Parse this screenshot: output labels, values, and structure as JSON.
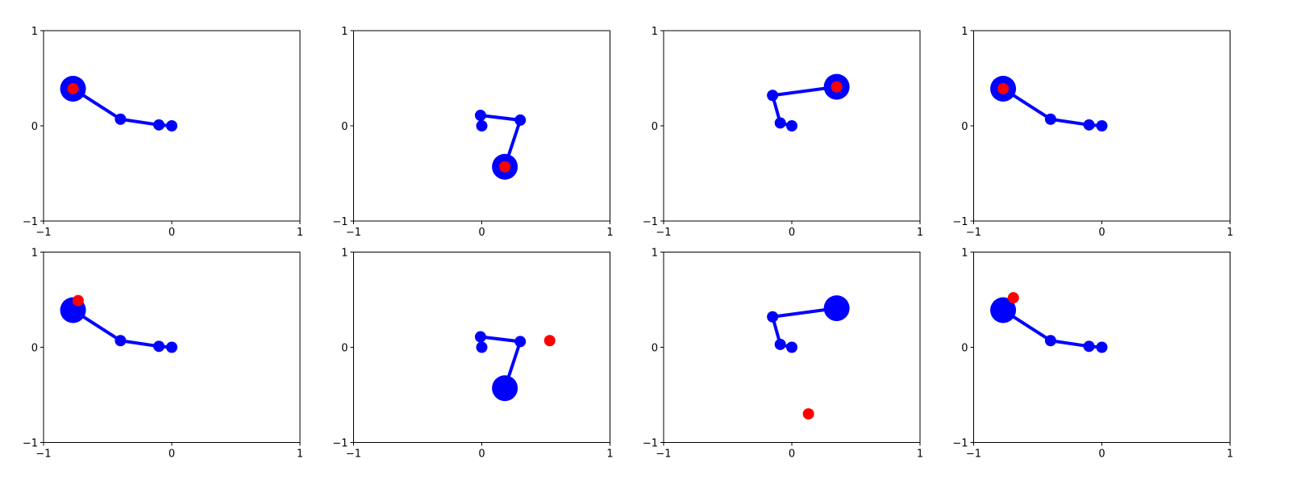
{
  "chart_data": [
    {
      "type": "line",
      "x": [
        0,
        -0.1,
        -0.4,
        -0.77
      ],
      "values": [
        0,
        0.01,
        0.07,
        0.39
      ],
      "color": "#0000ff",
      "target": {
        "x": -0.77,
        "y": 0.39,
        "color": "#ff0000"
      },
      "xlim": [
        -1,
        1
      ],
      "ylim": [
        -1,
        1
      ],
      "xticks": [
        {
          "value": -1,
          "label": "−1"
        },
        0,
        1
      ],
      "yticks": [
        {
          "value": -1,
          "label": "−1"
        },
        0,
        1
      ]
    },
    {
      "type": "line",
      "x": [
        0,
        -0.01,
        0.3,
        0.18
      ],
      "values": [
        0,
        0.11,
        0.06,
        -0.43
      ],
      "color": "#0000ff",
      "target": {
        "x": 0.18,
        "y": -0.43,
        "color": "#ff0000"
      },
      "xlim": [
        -1,
        1
      ],
      "ylim": [
        -1,
        1
      ],
      "xticks": [
        {
          "value": -1,
          "label": "−1"
        },
        0,
        1
      ],
      "yticks": [
        {
          "value": -1,
          "label": "−1"
        },
        0,
        1
      ]
    },
    {
      "type": "line",
      "x": [
        0,
        -0.09,
        -0.15,
        0.35
      ],
      "values": [
        0,
        0.03,
        0.32,
        0.41
      ],
      "color": "#0000ff",
      "target": {
        "x": 0.35,
        "y": 0.41,
        "color": "#ff0000"
      },
      "xlim": [
        -1,
        1
      ],
      "ylim": [
        -1,
        1
      ],
      "xticks": [
        {
          "value": -1,
          "label": "−1"
        },
        0,
        1
      ],
      "yticks": [
        {
          "value": -1,
          "label": "−1"
        },
        0,
        1
      ]
    },
    {
      "type": "line",
      "x": [
        0,
        -0.1,
        -0.4,
        -0.77
      ],
      "values": [
        0,
        0.01,
        0.07,
        0.39
      ],
      "color": "#0000ff",
      "target": {
        "x": -0.77,
        "y": 0.39,
        "color": "#ff0000"
      },
      "xlim": [
        -1,
        1
      ],
      "ylim": [
        -1,
        1
      ],
      "xticks": [
        {
          "value": -1,
          "label": "−1"
        },
        0,
        1
      ],
      "yticks": [
        {
          "value": -1,
          "label": "−1"
        },
        0,
        1
      ]
    },
    {
      "type": "line",
      "x": [
        0,
        -0.1,
        -0.4,
        -0.77
      ],
      "values": [
        0,
        0.01,
        0.07,
        0.39
      ],
      "color": "#0000ff",
      "target": {
        "x": -0.73,
        "y": 0.49,
        "color": "#ff0000"
      },
      "xlim": [
        -1,
        1
      ],
      "ylim": [
        -1,
        1
      ],
      "xticks": [
        {
          "value": -1,
          "label": "−1"
        },
        0,
        1
      ],
      "yticks": [
        {
          "value": -1,
          "label": "−1"
        },
        0,
        1
      ]
    },
    {
      "type": "line",
      "x": [
        0,
        -0.01,
        0.3,
        0.18
      ],
      "values": [
        0,
        0.11,
        0.06,
        -0.43
      ],
      "color": "#0000ff",
      "target": {
        "x": 0.53,
        "y": 0.07,
        "color": "#ff0000"
      },
      "xlim": [
        -1,
        1
      ],
      "ylim": [
        -1,
        1
      ],
      "xticks": [
        {
          "value": -1,
          "label": "−1"
        },
        0,
        1
      ],
      "yticks": [
        {
          "value": -1,
          "label": "−1"
        },
        0,
        1
      ]
    },
    {
      "type": "line",
      "x": [
        0,
        -0.09,
        -0.15,
        0.35
      ],
      "values": [
        0,
        0.03,
        0.32,
        0.41
      ],
      "color": "#0000ff",
      "target": {
        "x": 0.13,
        "y": -0.7,
        "color": "#ff0000"
      },
      "xlim": [
        -1,
        1
      ],
      "ylim": [
        -1,
        1
      ],
      "xticks": [
        {
          "value": -1,
          "label": "−1"
        },
        0,
        1
      ],
      "yticks": [
        {
          "value": -1,
          "label": "−1"
        },
        0,
        1
      ]
    },
    {
      "type": "line",
      "x": [
        0,
        -0.1,
        -0.4,
        -0.77
      ],
      "values": [
        0,
        0.01,
        0.07,
        0.39
      ],
      "color": "#0000ff",
      "target": {
        "x": -0.69,
        "y": 0.52,
        "color": "#ff0000"
      },
      "xlim": [
        -1,
        1
      ],
      "ylim": [
        -1,
        1
      ],
      "xticks": [
        {
          "value": -1,
          "label": "−1"
        },
        0,
        1
      ],
      "yticks": [
        {
          "value": -1,
          "label": "−1"
        },
        0,
        1
      ]
    }
  ]
}
